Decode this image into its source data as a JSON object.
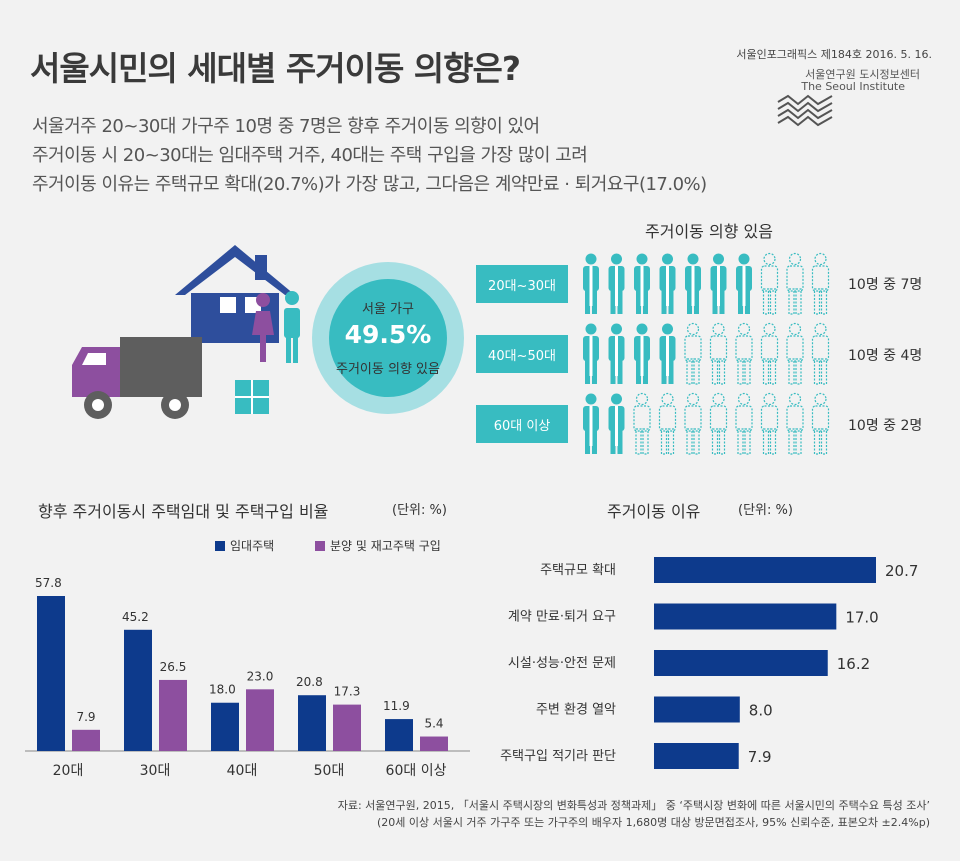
{
  "header": {
    "title": "서울시민의 세대별 주거이동 의향은?",
    "subtitles": [
      "서울거주 20~30대 가구주 10명 중 7명은 향후 주거이동 의향이 있어",
      "주거이동 시 20~30대는 임대주택 거주, 40대는 주택 구입을 가장 많이 고려",
      "주거이동 이유는 주택규모 확대(20.7%)가 가장 많고, 그다음은 계약만료 · 퇴거요구(17.0%)"
    ],
    "series_info": "서울인포그래픽스 제184호 2016. 5. 16.",
    "institute_ko": "서울연구원 도시정보센터",
    "institute_en": "The Seoul Institute"
  },
  "colors": {
    "rent": "#0d3a8c",
    "buy": "#8d4f9f",
    "teal": "#38bcc1",
    "teal_light": "#a6dfe3",
    "house": "#2e4e9c",
    "truck_body": "#5e5e5e",
    "truck_cab": "#8d4f9f"
  },
  "summary": {
    "label": "서울 가구",
    "value": "49.5%",
    "desc": "주거이동 의향 있음"
  },
  "move_intention": {
    "heading": "주거이동 의향 있음",
    "rows": [
      {
        "group": "20대~30대",
        "filled": 7,
        "total": 10,
        "text": "10명 중 7명"
      },
      {
        "group": "40대~50대",
        "filled": 4,
        "total": 10,
        "text": "10명 중 4명"
      },
      {
        "group": "60대 이상",
        "filled": 2,
        "total": 10,
        "text": "10명 중 2명"
      }
    ]
  },
  "chart_data": [
    {
      "type": "bar",
      "title": "향후 주거이동시 주택임대 및 주택구입 비율",
      "unit": "(단위: %)",
      "categories": [
        "20대",
        "30대",
        "40대",
        "50대",
        "60대 이상"
      ],
      "series": [
        {
          "name": "임대주택",
          "values": [
            57.8,
            45.2,
            18.0,
            20.8,
            11.9
          ]
        },
        {
          "name": "분양 및 재고주택 구입",
          "values": [
            7.9,
            26.5,
            23.0,
            17.3,
            5.4
          ]
        }
      ],
      "legend": "top"
    },
    {
      "type": "bar",
      "orientation": "horizontal",
      "title": "주거이동 이유",
      "unit": "(단위: %)",
      "categories": [
        "주택규모 확대",
        "계약 만료·퇴거 요구",
        "시설·성능·안전 문제",
        "주변 환경 열악",
        "주택구입 적기라 판단"
      ],
      "values": [
        20.7,
        17.0,
        16.2,
        8.0,
        7.9
      ]
    }
  ],
  "source": [
    "자료: 서울연구원, 2015, 「서울시 주택시장의 변화특성과 정책과제」 중 ‘주택시장 변화에 따른 서울시민의 주택수요 특성 조사’",
    "(20세 이상 서울시 거주 가구주 또는 가구주의 배우자 1,680명 대상 방문면접조사, 95% 신뢰수준, 표본오차 ±2.4%p)"
  ]
}
